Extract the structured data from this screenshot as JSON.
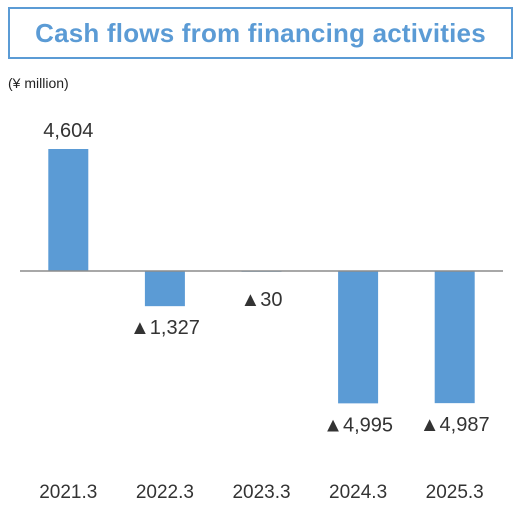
{
  "title": "Cash flows from financing activities",
  "unit_label": "(¥ million)",
  "colors": {
    "bar": "#5b9bd5",
    "axis": "#8c8c8c",
    "title": "#5b9bd5"
  },
  "chart_data": {
    "type": "bar",
    "title": "Cash flows from financing activities",
    "ylabel": "(¥ million)",
    "categories": [
      "2021.3",
      "2022.3",
      "2023.3",
      "2024.3",
      "2025.3"
    ],
    "values": [
      4604,
      -1327,
      -30,
      -4995,
      -4987
    ],
    "data_labels": [
      "4,604",
      "▲1,327",
      "▲30",
      "▲4,995",
      "▲4,987"
    ],
    "ylim": [
      -5000,
      4604
    ],
    "grid": false,
    "legend": "none"
  }
}
